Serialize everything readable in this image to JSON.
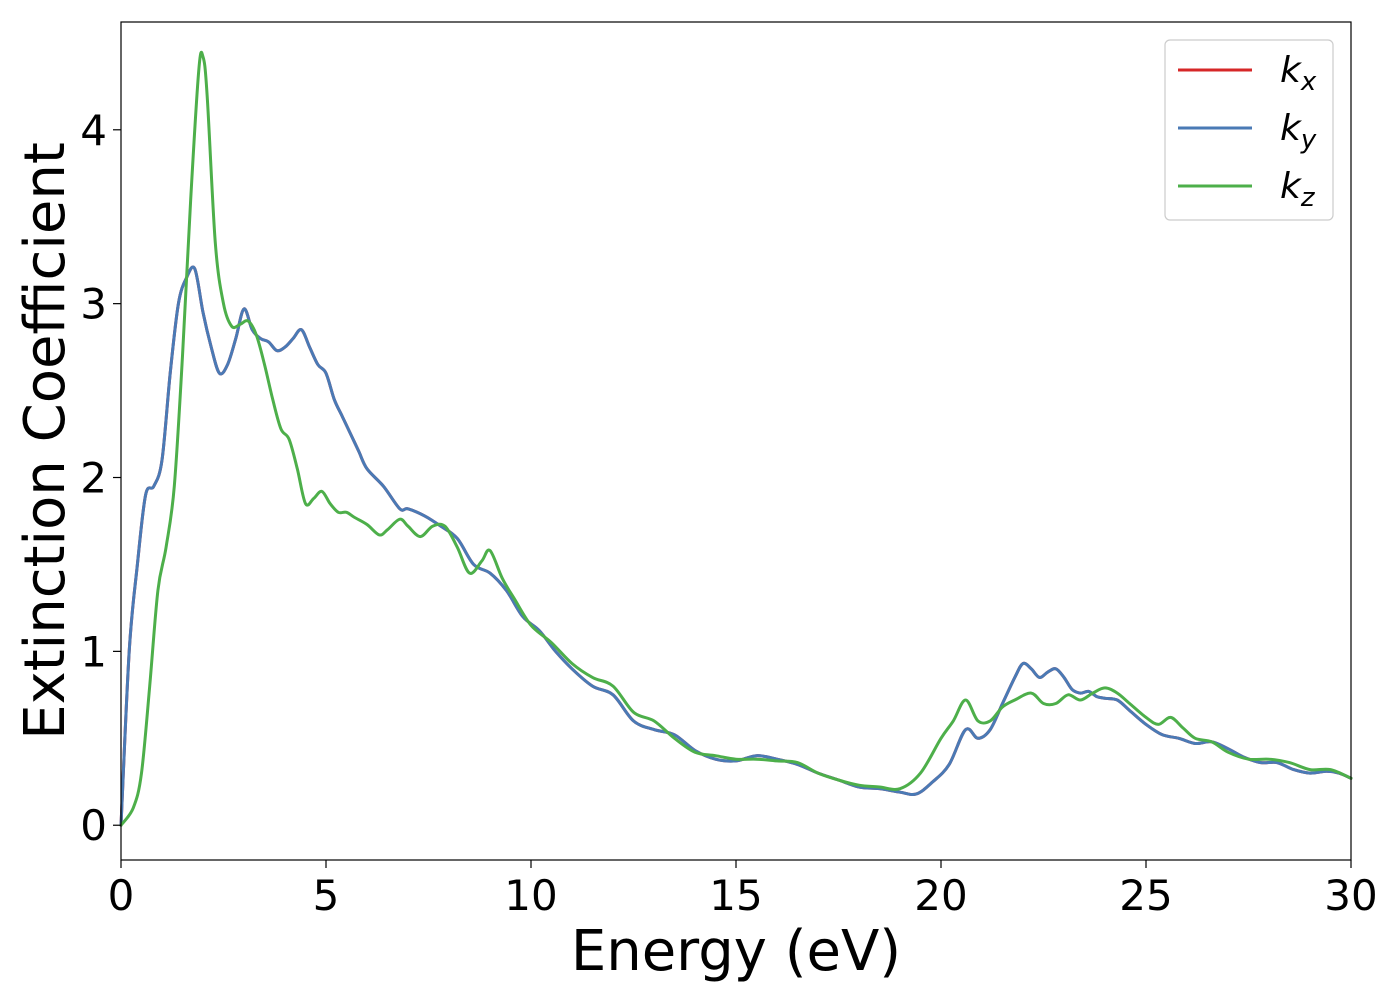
{
  "chart_data": {
    "type": "line",
    "title": "",
    "xlabel": "Energy (eV)",
    "ylabel": "Extinction Coefficient",
    "xlim": [
      0,
      30
    ],
    "ylim": [
      -0.2,
      4.62
    ],
    "xticks": [
      0,
      5,
      10,
      15,
      20,
      25,
      30
    ],
    "xtick_labels": [
      "0",
      "5",
      "10",
      "15",
      "20",
      "25",
      "30"
    ],
    "yticks": [
      0,
      1,
      2,
      3,
      4
    ],
    "ytick_labels": [
      "0",
      "1",
      "2",
      "3",
      "4"
    ],
    "grid": false,
    "legend_position": "top-right",
    "series": [
      {
        "name": "k_x",
        "label_base": "k",
        "label_sub": "x",
        "color": "#d62728",
        "x": [
          0,
          0.2,
          0.4,
          0.6,
          0.8,
          1.0,
          1.2,
          1.4,
          1.6,
          1.8,
          2.0,
          2.2,
          2.4,
          2.6,
          2.8,
          3.0,
          3.2,
          3.4,
          3.6,
          3.8,
          4.0,
          4.2,
          4.4,
          4.6,
          4.8,
          5.0,
          5.2,
          5.4,
          5.6,
          5.8,
          6.0,
          6.4,
          6.8,
          7.0,
          7.4,
          7.8,
          8.2,
          8.6,
          9.0,
          9.4,
          9.8,
          10.2,
          10.6,
          11.0,
          11.5,
          12.0,
          12.5,
          13.0,
          13.5,
          14.0,
          14.5,
          15.0,
          15.5,
          16.0,
          16.5,
          17.0,
          17.5,
          18.0,
          18.5,
          19.0,
          19.4,
          19.8,
          20.2,
          20.6,
          20.9,
          21.2,
          21.5,
          21.8,
          22.0,
          22.2,
          22.4,
          22.6,
          22.8,
          23.0,
          23.2,
          23.4,
          23.6,
          23.8,
          24.0,
          24.3,
          24.6,
          25.0,
          25.4,
          25.8,
          26.2,
          26.6,
          27.0,
          27.4,
          27.8,
          28.2,
          28.6,
          29.0,
          29.4,
          29.7,
          30.0
        ],
        "y": [
          0,
          1.0,
          1.5,
          1.9,
          1.95,
          2.1,
          2.6,
          3.0,
          3.15,
          3.2,
          2.95,
          2.75,
          2.6,
          2.65,
          2.8,
          2.97,
          2.85,
          2.8,
          2.78,
          2.73,
          2.75,
          2.8,
          2.85,
          2.75,
          2.65,
          2.6,
          2.45,
          2.35,
          2.25,
          2.15,
          2.05,
          1.95,
          1.82,
          1.82,
          1.78,
          1.72,
          1.65,
          1.5,
          1.45,
          1.35,
          1.2,
          1.12,
          1.0,
          0.9,
          0.8,
          0.75,
          0.6,
          0.55,
          0.52,
          0.43,
          0.38,
          0.37,
          0.4,
          0.38,
          0.35,
          0.3,
          0.26,
          0.22,
          0.21,
          0.19,
          0.18,
          0.25,
          0.35,
          0.55,
          0.5,
          0.55,
          0.7,
          0.85,
          0.93,
          0.9,
          0.85,
          0.88,
          0.9,
          0.85,
          0.78,
          0.76,
          0.77,
          0.74,
          0.73,
          0.72,
          0.66,
          0.58,
          0.52,
          0.5,
          0.47,
          0.48,
          0.44,
          0.39,
          0.36,
          0.36,
          0.32,
          0.3,
          0.31,
          0.3,
          0.27
        ]
      },
      {
        "name": "k_y",
        "label_base": "k",
        "label_sub": "y",
        "color": "#4a7ab5",
        "x": [
          0,
          0.2,
          0.4,
          0.6,
          0.8,
          1.0,
          1.2,
          1.4,
          1.6,
          1.8,
          2.0,
          2.2,
          2.4,
          2.6,
          2.8,
          3.0,
          3.2,
          3.4,
          3.6,
          3.8,
          4.0,
          4.2,
          4.4,
          4.6,
          4.8,
          5.0,
          5.2,
          5.4,
          5.6,
          5.8,
          6.0,
          6.4,
          6.8,
          7.0,
          7.4,
          7.8,
          8.2,
          8.6,
          9.0,
          9.4,
          9.8,
          10.2,
          10.6,
          11.0,
          11.5,
          12.0,
          12.5,
          13.0,
          13.5,
          14.0,
          14.5,
          15.0,
          15.5,
          16.0,
          16.5,
          17.0,
          17.5,
          18.0,
          18.5,
          19.0,
          19.4,
          19.8,
          20.2,
          20.6,
          20.9,
          21.2,
          21.5,
          21.8,
          22.0,
          22.2,
          22.4,
          22.6,
          22.8,
          23.0,
          23.2,
          23.4,
          23.6,
          23.8,
          24.0,
          24.3,
          24.6,
          25.0,
          25.4,
          25.8,
          26.2,
          26.6,
          27.0,
          27.4,
          27.8,
          28.2,
          28.6,
          29.0,
          29.4,
          29.7,
          30.0
        ],
        "y": [
          0,
          1.0,
          1.5,
          1.9,
          1.95,
          2.1,
          2.6,
          3.0,
          3.15,
          3.2,
          2.95,
          2.75,
          2.6,
          2.65,
          2.8,
          2.97,
          2.85,
          2.8,
          2.78,
          2.73,
          2.75,
          2.8,
          2.85,
          2.75,
          2.65,
          2.6,
          2.45,
          2.35,
          2.25,
          2.15,
          2.05,
          1.95,
          1.82,
          1.82,
          1.78,
          1.72,
          1.65,
          1.5,
          1.45,
          1.35,
          1.2,
          1.12,
          1.0,
          0.9,
          0.8,
          0.75,
          0.6,
          0.55,
          0.52,
          0.43,
          0.38,
          0.37,
          0.4,
          0.38,
          0.35,
          0.3,
          0.26,
          0.22,
          0.21,
          0.19,
          0.18,
          0.25,
          0.35,
          0.55,
          0.5,
          0.55,
          0.7,
          0.85,
          0.93,
          0.9,
          0.85,
          0.88,
          0.9,
          0.85,
          0.78,
          0.76,
          0.77,
          0.74,
          0.73,
          0.72,
          0.66,
          0.58,
          0.52,
          0.5,
          0.47,
          0.48,
          0.44,
          0.39,
          0.36,
          0.36,
          0.32,
          0.3,
          0.31,
          0.3,
          0.27
        ]
      },
      {
        "name": "k_z",
        "label_base": "k",
        "label_sub": "z",
        "color": "#4daf4a",
        "x": [
          0,
          0.3,
          0.5,
          0.7,
          0.9,
          1.1,
          1.3,
          1.5,
          1.7,
          1.9,
          2.0,
          2.1,
          2.3,
          2.5,
          2.7,
          2.9,
          3.1,
          3.3,
          3.5,
          3.7,
          3.9,
          4.1,
          4.3,
          4.5,
          4.7,
          4.9,
          5.1,
          5.3,
          5.5,
          5.7,
          6.0,
          6.3,
          6.5,
          6.8,
          7.0,
          7.3,
          7.6,
          7.9,
          8.2,
          8.5,
          8.8,
          9.0,
          9.3,
          9.6,
          10.0,
          10.5,
          11.0,
          11.5,
          12.0,
          12.5,
          13.0,
          13.5,
          14.0,
          14.5,
          15.0,
          15.5,
          16.0,
          16.5,
          17.0,
          17.5,
          18.0,
          18.5,
          19.0,
          19.5,
          20.0,
          20.3,
          20.6,
          20.9,
          21.2,
          21.5,
          21.8,
          22.2,
          22.5,
          22.8,
          23.1,
          23.4,
          23.7,
          24.0,
          24.3,
          24.6,
          25.0,
          25.3,
          25.6,
          25.9,
          26.2,
          26.6,
          27.0,
          27.5,
          28.0,
          28.5,
          29.0,
          29.5,
          30.0
        ],
        "y": [
          0,
          0.1,
          0.3,
          0.8,
          1.35,
          1.6,
          1.95,
          2.7,
          3.6,
          4.35,
          4.42,
          4.2,
          3.35,
          3.0,
          2.87,
          2.88,
          2.9,
          2.82,
          2.65,
          2.45,
          2.28,
          2.22,
          2.05,
          1.85,
          1.88,
          1.92,
          1.85,
          1.8,
          1.8,
          1.77,
          1.73,
          1.67,
          1.7,
          1.76,
          1.72,
          1.66,
          1.72,
          1.72,
          1.6,
          1.45,
          1.52,
          1.58,
          1.42,
          1.3,
          1.15,
          1.05,
          0.93,
          0.85,
          0.8,
          0.65,
          0.6,
          0.5,
          0.42,
          0.4,
          0.38,
          0.38,
          0.37,
          0.36,
          0.3,
          0.26,
          0.23,
          0.22,
          0.21,
          0.3,
          0.5,
          0.6,
          0.72,
          0.6,
          0.6,
          0.68,
          0.72,
          0.76,
          0.7,
          0.7,
          0.75,
          0.72,
          0.76,
          0.79,
          0.76,
          0.7,
          0.62,
          0.58,
          0.62,
          0.56,
          0.5,
          0.48,
          0.42,
          0.38,
          0.38,
          0.36,
          0.32,
          0.32,
          0.27
        ]
      }
    ]
  }
}
